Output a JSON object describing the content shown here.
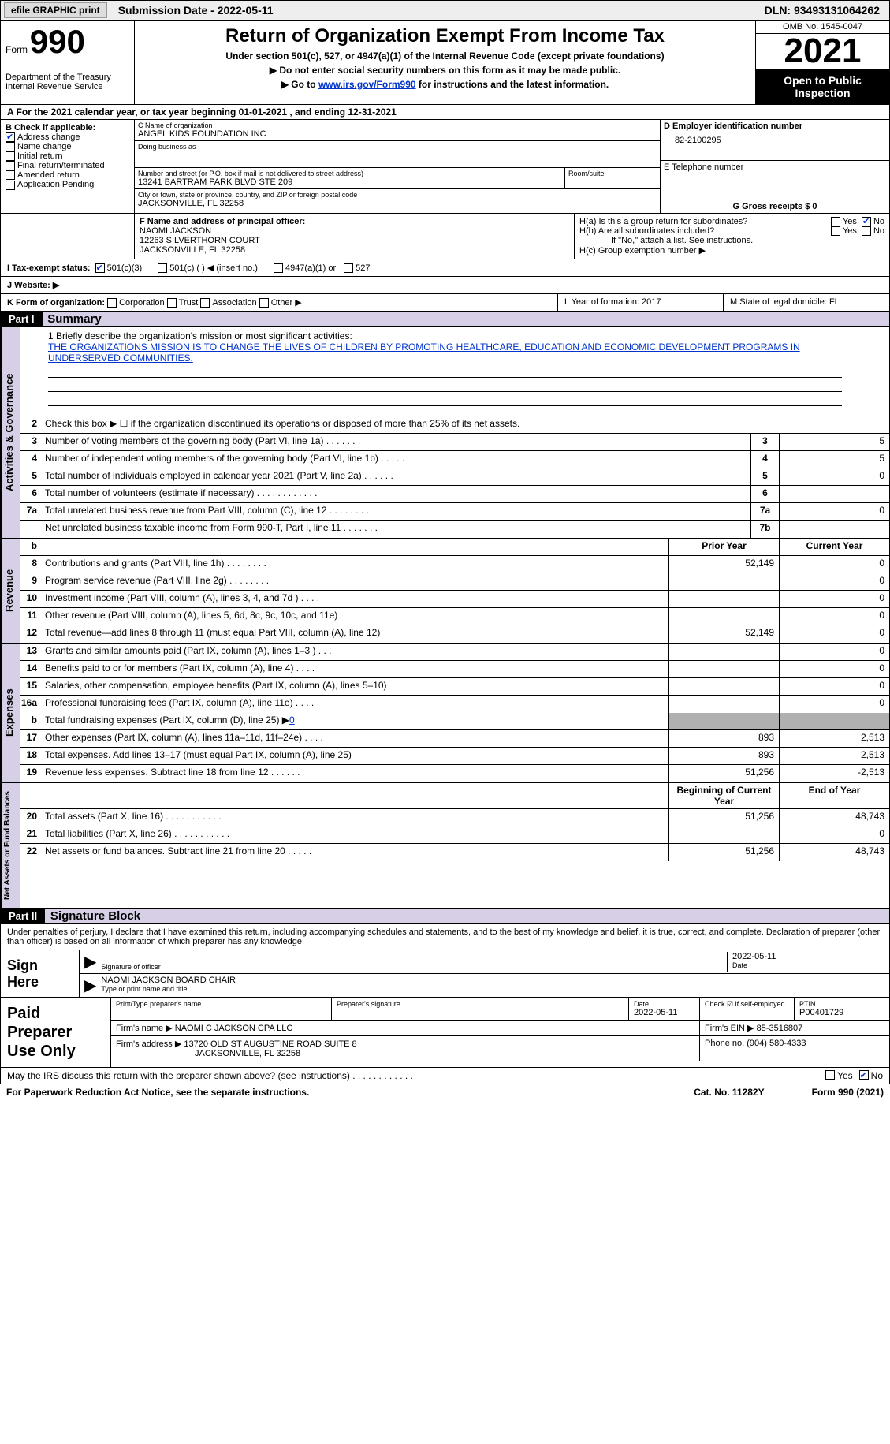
{
  "topbar": {
    "efile": "efile GRAPHIC print",
    "submission": "Submission Date - 2022-05-11",
    "dln": "DLN: 93493131064262"
  },
  "header": {
    "form_label": "Form",
    "form_num": "990",
    "dept": "Department of the Treasury\nInternal Revenue Service",
    "title": "Return of Organization Exempt From Income Tax",
    "sub1": "Under section 501(c), 527, or 4947(a)(1) of the Internal Revenue Code (except private foundations)",
    "sub2": "▶ Do not enter social security numbers on this form as it may be made public.",
    "sub3_pre": "▶ Go to ",
    "sub3_link": "www.irs.gov/Form990",
    "sub3_post": " for instructions and the latest information.",
    "omb": "OMB No. 1545-0047",
    "year": "2021",
    "open": "Open to Public Inspection"
  },
  "rowA": "A  For the 2021 calendar year, or tax year beginning 01-01-2021    , and ending 12-31-2021",
  "secB": {
    "label": "B Check if applicable:",
    "items": [
      {
        "txt": "Address change",
        "chk": true
      },
      {
        "txt": "Name change",
        "chk": false
      },
      {
        "txt": "Initial return",
        "chk": false
      },
      {
        "txt": "Final return/terminated",
        "chk": false
      },
      {
        "txt": "Amended return",
        "chk": false
      },
      {
        "txt": "Application Pending",
        "chk": false
      }
    ]
  },
  "secC": {
    "name_lbl": "C Name of organization",
    "name": "ANGEL KIDS FOUNDATION INC",
    "dba": "Doing business as",
    "addr_lbl": "Number and street (or P.O. box if mail is not delivered to street address)",
    "room": "Room/suite",
    "addr": "13241 BARTRAM PARK BLVD STE 209",
    "city_lbl": "City or town, state or province, country, and ZIP or foreign postal code",
    "city": "JACKSONVILLE, FL  32258"
  },
  "secD": {
    "ein_lbl": "D Employer identification number",
    "ein": "82-2100295",
    "phone_lbl": "E Telephone number",
    "gross_lbl": "G Gross receipts $ 0"
  },
  "secF": {
    "lbl": "F Name and address of principal officer:",
    "name": "NAOMI JACKSON",
    "addr1": "12263 SILVERTHORN COURT",
    "addr2": "JACKSONVILLE, FL  32258"
  },
  "secH": {
    "ha": "H(a)  Is this a group return for subordinates?",
    "hb": "H(b)  Are all subordinates included?",
    "hb_note": "If \"No,\" attach a list. See instructions.",
    "hc": "H(c)  Group exemption number ▶",
    "yes": "Yes",
    "no": "No"
  },
  "secI": {
    "lbl": "I   Tax-exempt status:",
    "o1": "501(c)(3)",
    "o2": "501(c) (   ) ◀ (insert no.)",
    "o3": "4947(a)(1) or",
    "o4": "527"
  },
  "secJ": {
    "lbl": "J   Website: ▶"
  },
  "secK": {
    "lbl": "K Form of organization:",
    "o1": "Corporation",
    "o2": "Trust",
    "o3": "Association",
    "o4": "Other ▶",
    "l": "L Year of formation: 2017",
    "m": "M State of legal domicile: FL"
  },
  "parts": {
    "p1": "Part I",
    "p1t": "Summary",
    "p2": "Part II",
    "p2t": "Signature Block"
  },
  "summary": {
    "q1_lbl": "1   Briefly describe the organization's mission or most significant activities:",
    "q1_txt": "THE ORGANIZATIONS MISSION IS TO CHANGE THE LIVES OF CHILDREN BY PROMOTING HEALTHCARE, EDUCATION AND ECONOMIC DEVELOPMENT PROGRAMS IN UNDERSERVED COMMUNITIES.",
    "q2": "Check this box ▶ ☐  if the organization discontinued its operations or disposed of more than 25% of its net assets.",
    "tabs": {
      "act": "Activities & Governance",
      "rev": "Revenue",
      "exp": "Expenses",
      "net": "Net Assets or Fund Balances"
    },
    "col_prior": "Prior Year",
    "col_curr": "Current Year",
    "col_beg": "Beginning of Current Year",
    "col_end": "End of Year",
    "gov_rows": [
      {
        "n": "3",
        "d": "Number of voting members of the governing body (Part VI, line 1a)   .    .    .    .    .    .    .",
        "b": "3",
        "v": "5"
      },
      {
        "n": "4",
        "d": "Number of independent voting members of the governing body (Part VI, line 1b)   .    .    .    .    .",
        "b": "4",
        "v": "5"
      },
      {
        "n": "5",
        "d": "Total number of individuals employed in calendar year 2021 (Part V, line 2a)   .    .    .    .    .    .",
        "b": "5",
        "v": "0"
      },
      {
        "n": "6",
        "d": "Total number of volunteers (estimate if necessary)    .    .    .    .    .    .    .    .    .    .    .    .",
        "b": "6",
        "v": ""
      },
      {
        "n": "7a",
        "d": "Total unrelated business revenue from Part VIII, column (C), line 12   .    .    .    .    .    .    .    .",
        "b": "7a",
        "v": "0"
      },
      {
        "n": "",
        "d": "Net unrelated business taxable income from Form 990-T, Part I, line 11   .    .    .    .    .    .    .",
        "b": "7b",
        "v": ""
      }
    ],
    "rev_rows": [
      {
        "n": "8",
        "d": "Contributions and grants (Part VIII, line 1h)   .    .    .    .    .    .    .    .",
        "p": "52,149",
        "c": "0"
      },
      {
        "n": "9",
        "d": "Program service revenue (Part VIII, line 2g)   .    .    .    .    .    .    .    .",
        "p": "",
        "c": "0"
      },
      {
        "n": "10",
        "d": "Investment income (Part VIII, column (A), lines 3, 4, and 7d )   .    .    .    .",
        "p": "",
        "c": "0"
      },
      {
        "n": "11",
        "d": "Other revenue (Part VIII, column (A), lines 5, 6d, 8c, 9c, 10c, and 11e)",
        "p": "",
        "c": "0"
      },
      {
        "n": "12",
        "d": "Total revenue—add lines 8 through 11 (must equal Part VIII, column (A), line 12)",
        "p": "52,149",
        "c": "0"
      }
    ],
    "exp_rows": [
      {
        "n": "13",
        "d": "Grants and similar amounts paid (Part IX, column (A), lines 1–3 )   .    .    .",
        "p": "",
        "c": "0"
      },
      {
        "n": "14",
        "d": "Benefits paid to or for members (Part IX, column (A), line 4)   .    .    .    .",
        "p": "",
        "c": "0"
      },
      {
        "n": "15",
        "d": "Salaries, other compensation, employee benefits (Part IX, column (A), lines 5–10)",
        "p": "",
        "c": "0"
      },
      {
        "n": "16a",
        "d": "Professional fundraising fees (Part IX, column (A), line 11e)   .    .    .    .",
        "p": "",
        "c": "0"
      }
    ],
    "exp_b": {
      "n": "b",
      "d": "Total fundraising expenses (Part IX, column (D), line 25) ▶",
      "v": "0"
    },
    "exp_rows2": [
      {
        "n": "17",
        "d": "Other expenses (Part IX, column (A), lines 11a–11d, 11f–24e)   .    .    .    .",
        "p": "893",
        "c": "2,513"
      },
      {
        "n": "18",
        "d": "Total expenses. Add lines 13–17 (must equal Part IX, column (A), line 25)",
        "p": "893",
        "c": "2,513"
      },
      {
        "n": "19",
        "d": "Revenue less expenses. Subtract line 18 from line 12   .    .    .    .    .    .",
        "p": "51,256",
        "c": "-2,513"
      }
    ],
    "net_rows": [
      {
        "n": "20",
        "d": "Total assets (Part X, line 16)   .    .    .    .    .    .    .    .    .    .    .    .",
        "p": "51,256",
        "c": "48,743"
      },
      {
        "n": "21",
        "d": "Total liabilities (Part X, line 26)   .    .    .    .    .    .    .    .    .    .    .",
        "p": "",
        "c": "0"
      },
      {
        "n": "22",
        "d": "Net assets or fund balances. Subtract line 21 from line 20   .    .    .    .    .",
        "p": "51,256",
        "c": "48,743"
      }
    ]
  },
  "sign": {
    "decl": "Under penalties of perjury, I declare that I have examined this return, including accompanying schedules and statements, and to the best of my knowledge and belief, it is true, correct, and complete. Declaration of preparer (other than officer) is based on all information of which preparer has any knowledge.",
    "sign_here": "Sign Here",
    "sig_lbl": "Signature of officer",
    "date": "2022-05-11",
    "date_lbl": "Date",
    "name": "NAOMI JACKSON  BOARD CHAIR",
    "name_lbl": "Type or print name and title",
    "paid": "Paid Preparer Use Only",
    "pp_name_lbl": "Print/Type preparer's name",
    "pp_sig_lbl": "Preparer's signature",
    "pp_date_lbl": "Date",
    "pp_date": "2022-05-11",
    "pp_chk_lbl": "Check ☑ if self-employed",
    "ptin_lbl": "PTIN",
    "ptin": "P00401729",
    "firm_name_lbl": "Firm's name    ▶",
    "firm_name": "NAOMI C JACKSON CPA LLC",
    "firm_ein_lbl": "Firm's EIN ▶",
    "firm_ein": "85-3516807",
    "firm_addr_lbl": "Firm's address ▶",
    "firm_addr1": "13720 OLD ST AUGUSTINE ROAD SUITE 8",
    "firm_addr2": "JACKSONVILLE, FL  32258",
    "phone_lbl": "Phone no.",
    "phone": "(904) 580-4333"
  },
  "footer": {
    "discuss": "May the IRS discuss this return with the preparer shown above? (see instructions)   .    .    .    .    .    .    .    .    .    .    .    .",
    "pra": "For Paperwork Reduction Act Notice, see the separate instructions.",
    "cat": "Cat. No. 11282Y",
    "form": "Form 990 (2021)",
    "yes": "Yes",
    "no": "No"
  }
}
